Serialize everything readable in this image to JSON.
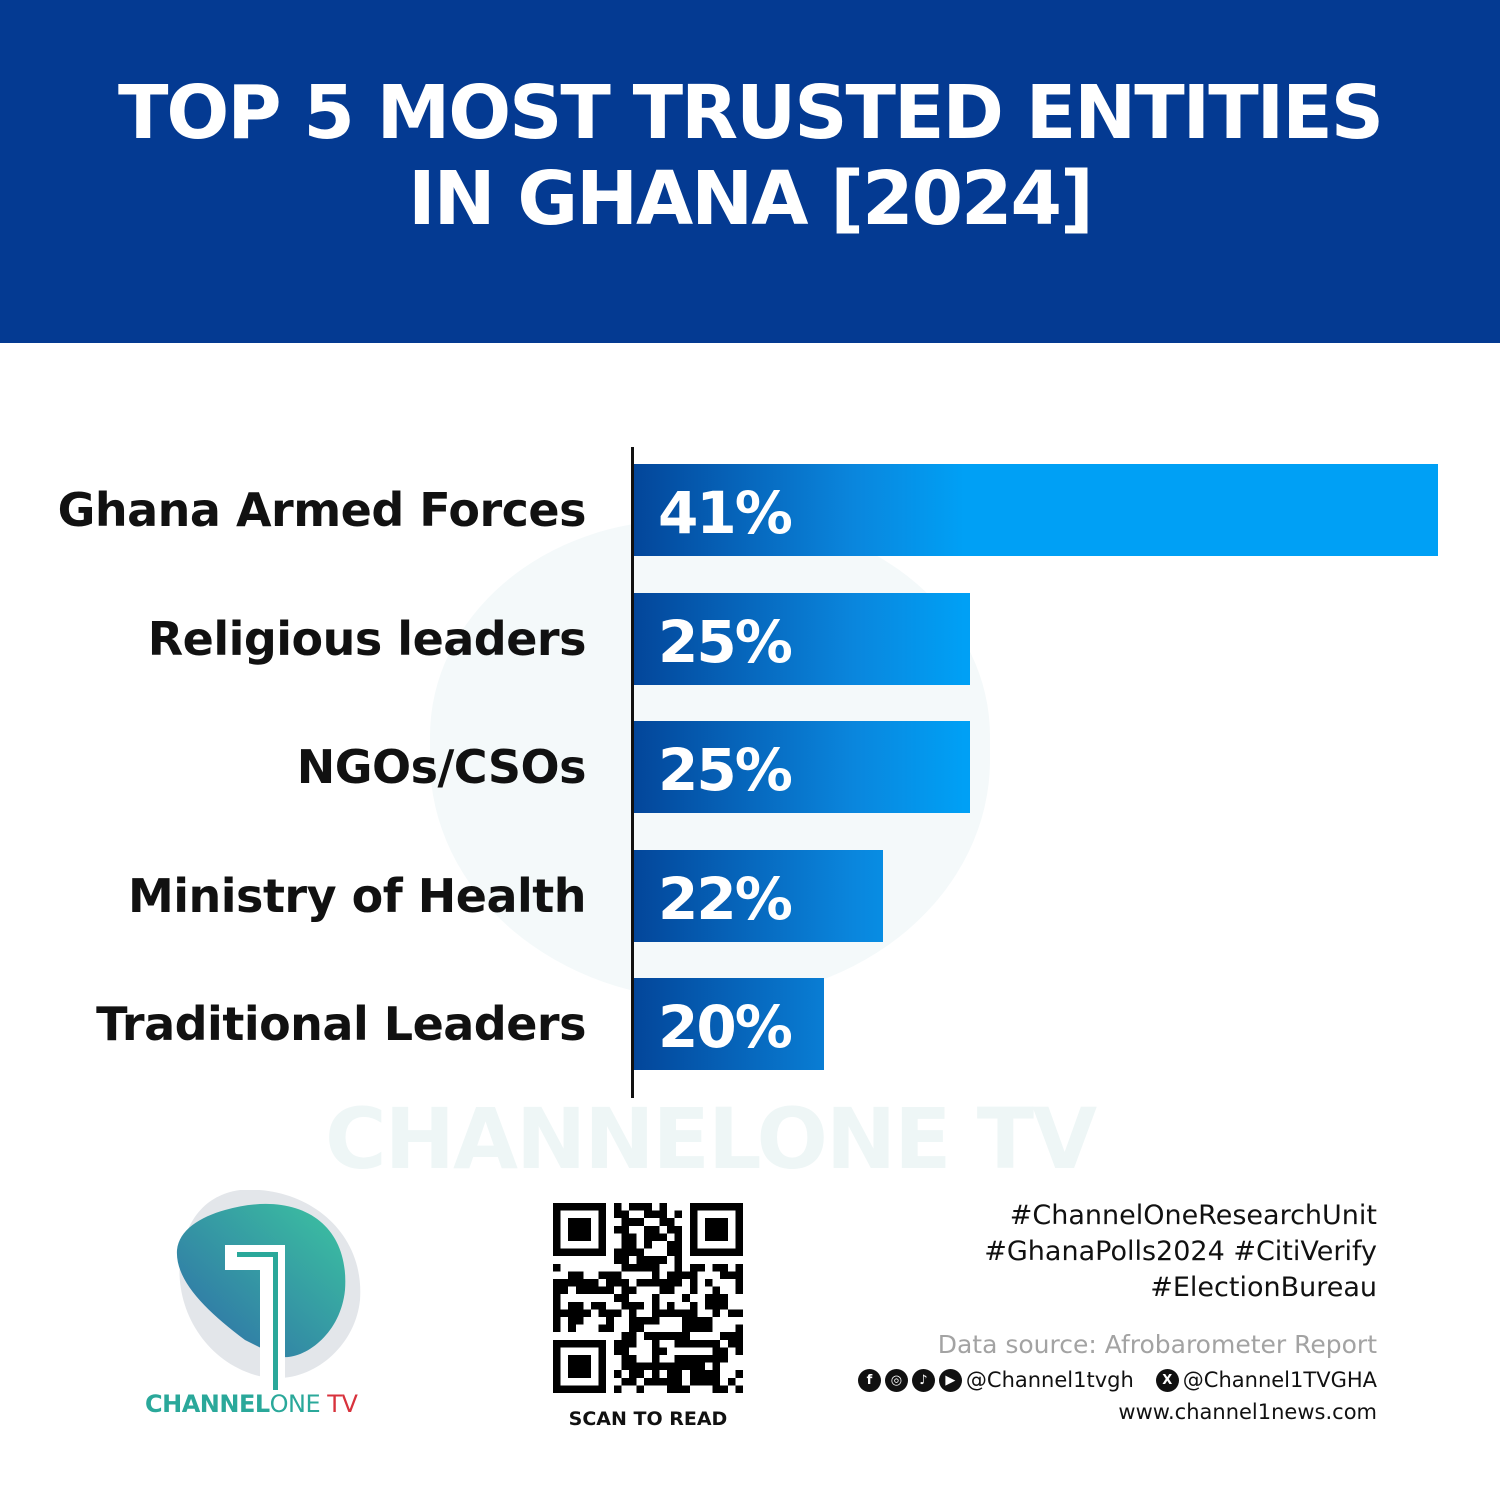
{
  "header": {
    "title_line1": "TOP 5 MOST TRUSTED ENTITIES",
    "title_line2": "IN GHANA [2024]",
    "background": "#043a92"
  },
  "chart_data": {
    "type": "bar",
    "orientation": "horizontal",
    "categories": [
      "Ghana Armed Forces",
      "Religious leaders",
      "NGOs/CSOs",
      "Ministry of Health",
      "Traditional Leaders"
    ],
    "values": [
      41,
      25,
      25,
      22,
      20
    ],
    "data_labels": [
      "41%",
      "25%",
      "25%",
      "22%",
      "20%"
    ],
    "unit": "%",
    "xlim": [
      13.5,
      41
    ],
    "grid": false,
    "bar_gradient": [
      "#03469a",
      "#00a0f5"
    ]
  },
  "watermark": "CHANNELONE TV",
  "logo": {
    "brand": "CHANNEL",
    "one": "ONE",
    "tv": " TV",
    "teal": "#2aa89a",
    "red": "#d8323c"
  },
  "qr": {
    "caption": "SCAN TO READ"
  },
  "footer": {
    "hashtags": [
      "#ChannelOneResearchUnit",
      "#GhanaPolls2024 #CitiVerify",
      "#ElectionBureau"
    ],
    "source": "Data source: Afrobarometer Report",
    "social_icons": [
      "facebook-icon",
      "instagram-icon",
      "tiktok-icon",
      "youtube-icon"
    ],
    "handle1": "@Channel1tvgh",
    "handle2": "@Channel1TVGHA",
    "website": "www.channel1news.com"
  }
}
